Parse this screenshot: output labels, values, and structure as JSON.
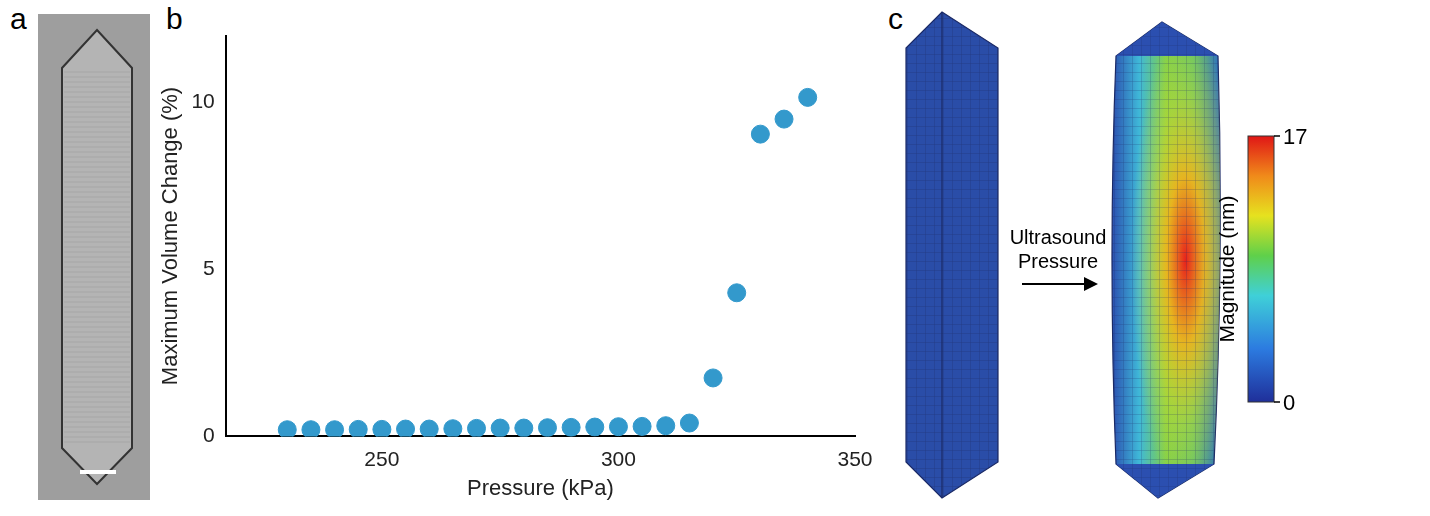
{
  "chart_data": {
    "type": "scatter",
    "x_label": "Pressure (kPa)",
    "y_label": "Maximum Volume Change (%)",
    "x": [
      230,
      235,
      240,
      245,
      250,
      255,
      260,
      265,
      270,
      275,
      280,
      285,
      290,
      295,
      300,
      305,
      310,
      315,
      320,
      325,
      330,
      335,
      340
    ],
    "values": [
      0.2,
      0.2,
      0.2,
      0.21,
      0.21,
      0.22,
      0.22,
      0.23,
      0.24,
      0.25,
      0.25,
      0.26,
      0.27,
      0.28,
      0.29,
      0.3,
      0.32,
      0.4,
      1.75,
      4.3,
      9.05,
      9.5,
      10.15
    ],
    "color": "#3399cc",
    "marker": "circle",
    "xlim": [
      217,
      350
    ],
    "ylim": [
      0,
      12
    ],
    "xticks": [
      250,
      300,
      350
    ],
    "yticks": [
      0,
      5,
      10
    ],
    "grid": false
  },
  "panel_labels": [
    "a",
    "b",
    "c"
  ],
  "diagram": {
    "arrow_label": "Ultrasound Pressure",
    "colorbar": {
      "label": "Magnitude (nm)",
      "range": [
        0,
        17
      ],
      "ticks": [
        0,
        17
      ]
    }
  }
}
